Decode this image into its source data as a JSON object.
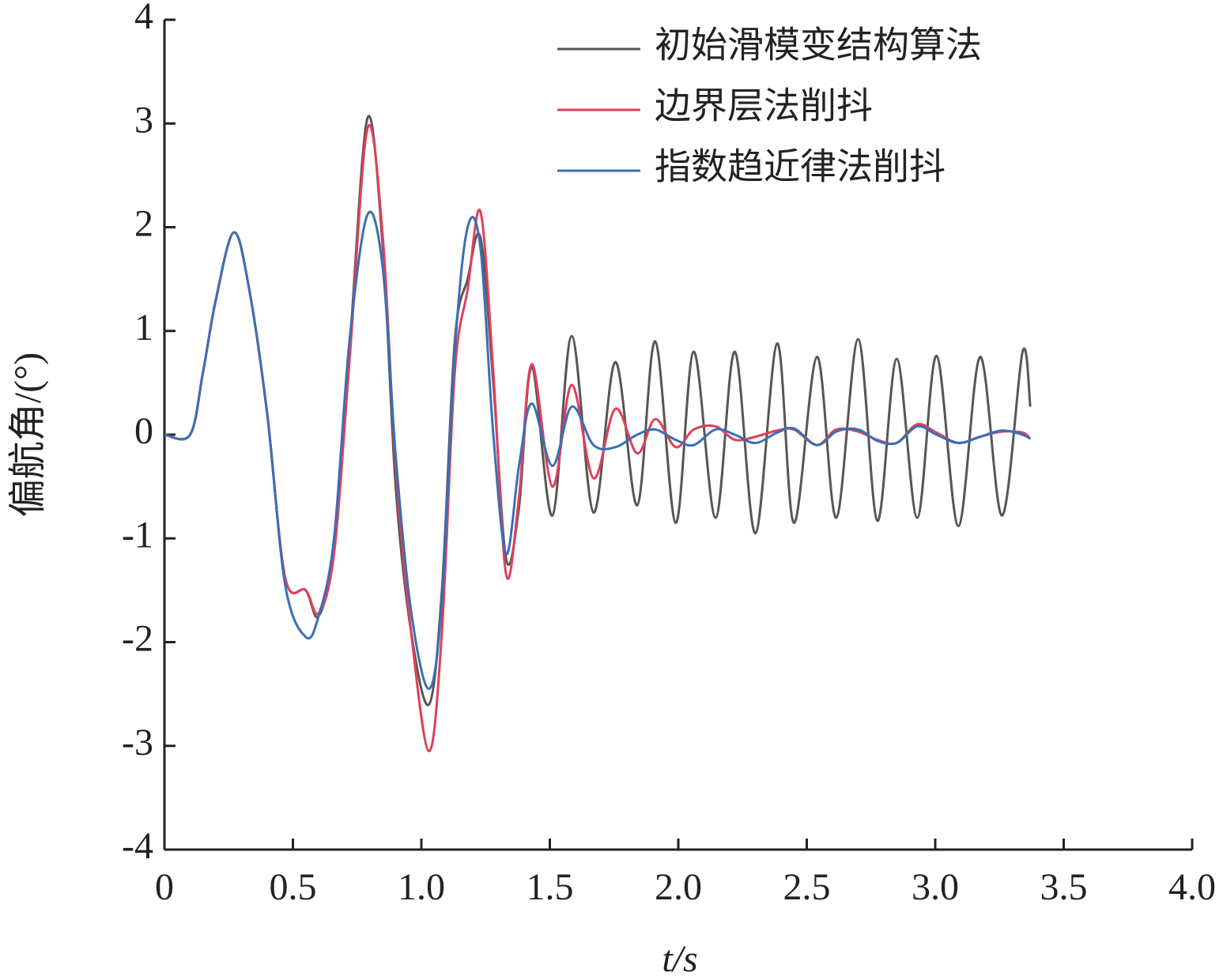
{
  "chart_data": {
    "type": "line",
    "x_label": "t/s",
    "y_label": "偏航角/(°)",
    "xlim": [
      0,
      4
    ],
    "ylim": [
      -4,
      4
    ],
    "xticks": [
      0,
      0.5,
      {
        "value": 1,
        "label": "1.0"
      },
      1.5,
      {
        "value": 2,
        "label": "2.0"
      },
      2.5,
      {
        "value": 3,
        "label": "3.0"
      },
      3.5,
      {
        "value": 4,
        "label": "4.0"
      }
    ],
    "yticks": [
      -4,
      -3,
      -2,
      -1,
      0,
      1,
      2,
      3,
      4
    ],
    "x": [
      0,
      0.1,
      0.15,
      0.2,
      0.27,
      0.33,
      0.4,
      0.47,
      0.55,
      0.6,
      0.66,
      0.72,
      0.79,
      0.85,
      0.9,
      0.96,
      1.03,
      1.08,
      1.13,
      1.18,
      1.23,
      1.28,
      1.33,
      1.38,
      1.43,
      1.51,
      1.585,
      1.67,
      1.755,
      1.84,
      1.91,
      1.99,
      2.06,
      2.145,
      2.22,
      2.3,
      2.385,
      2.45,
      2.54,
      2.615,
      2.7,
      2.775,
      2.85,
      2.93,
      3.005,
      3.09,
      3.175,
      3.26,
      3.34,
      3.37
    ],
    "series": [
      {
        "name": "初始滑模变结构算法",
        "color": "#5a5555",
        "values": [
          0,
          0,
          0.6,
          1.3,
          1.95,
          1.4,
          0.2,
          -1.38,
          -1.5,
          -1.75,
          -1.1,
          0.8,
          3.05,
          1.8,
          -0.5,
          -1.9,
          -2.6,
          -1.5,
          0.9,
          1.5,
          1.9,
          0.5,
          -1.2,
          -0.7,
          0.65,
          -0.78,
          0.95,
          -0.75,
          0.7,
          -0.68,
          0.9,
          -0.85,
          0.8,
          -0.8,
          0.8,
          -0.95,
          0.88,
          -0.85,
          0.75,
          -0.8,
          0.92,
          -0.83,
          0.73,
          -0.8,
          0.76,
          -0.88,
          0.75,
          -0.78,
          0.8,
          0.27
        ]
      },
      {
        "name": "边界层法削抖",
        "color": "#e0405a",
        "values": [
          0,
          0,
          0.6,
          1.3,
          1.95,
          1.4,
          0.2,
          -1.38,
          -1.5,
          -1.72,
          -1.15,
          0.7,
          2.95,
          1.9,
          -0.3,
          -1.9,
          -3.05,
          -1.9,
          0.6,
          1.4,
          2.15,
          0.6,
          -1.35,
          -0.6,
          0.68,
          -0.5,
          0.48,
          -0.42,
          0.25,
          -0.18,
          0.15,
          -0.12,
          0.05,
          0.08,
          -0.05,
          -0.02,
          0.04,
          0.05,
          -0.1,
          0.05,
          0.03,
          -0.05,
          -0.08,
          0.1,
          0.02,
          -0.08,
          -0.02,
          0.03,
          0.02,
          -0.04
        ]
      },
      {
        "name": "指数趋近律法削抖",
        "color": "#3a6fb5",
        "values": [
          0,
          0,
          0.6,
          1.3,
          1.95,
          1.4,
          0.2,
          -1.45,
          -1.95,
          -1.75,
          -1.0,
          0.9,
          2.12,
          1.6,
          -0.2,
          -1.7,
          -2.45,
          -1.6,
          0.8,
          2.0,
          1.8,
          0.0,
          -1.15,
          -0.3,
          0.3,
          -0.3,
          0.27,
          -0.1,
          -0.12,
          0.0,
          0.05,
          -0.05,
          -0.1,
          0.05,
          0.0,
          -0.08,
          0.02,
          0.06,
          -0.1,
          0.03,
          0.05,
          -0.06,
          -0.08,
          0.08,
          0.0,
          -0.08,
          -0.02,
          0.04,
          0.0,
          -0.04
        ]
      }
    ],
    "legend": "upper right"
  }
}
